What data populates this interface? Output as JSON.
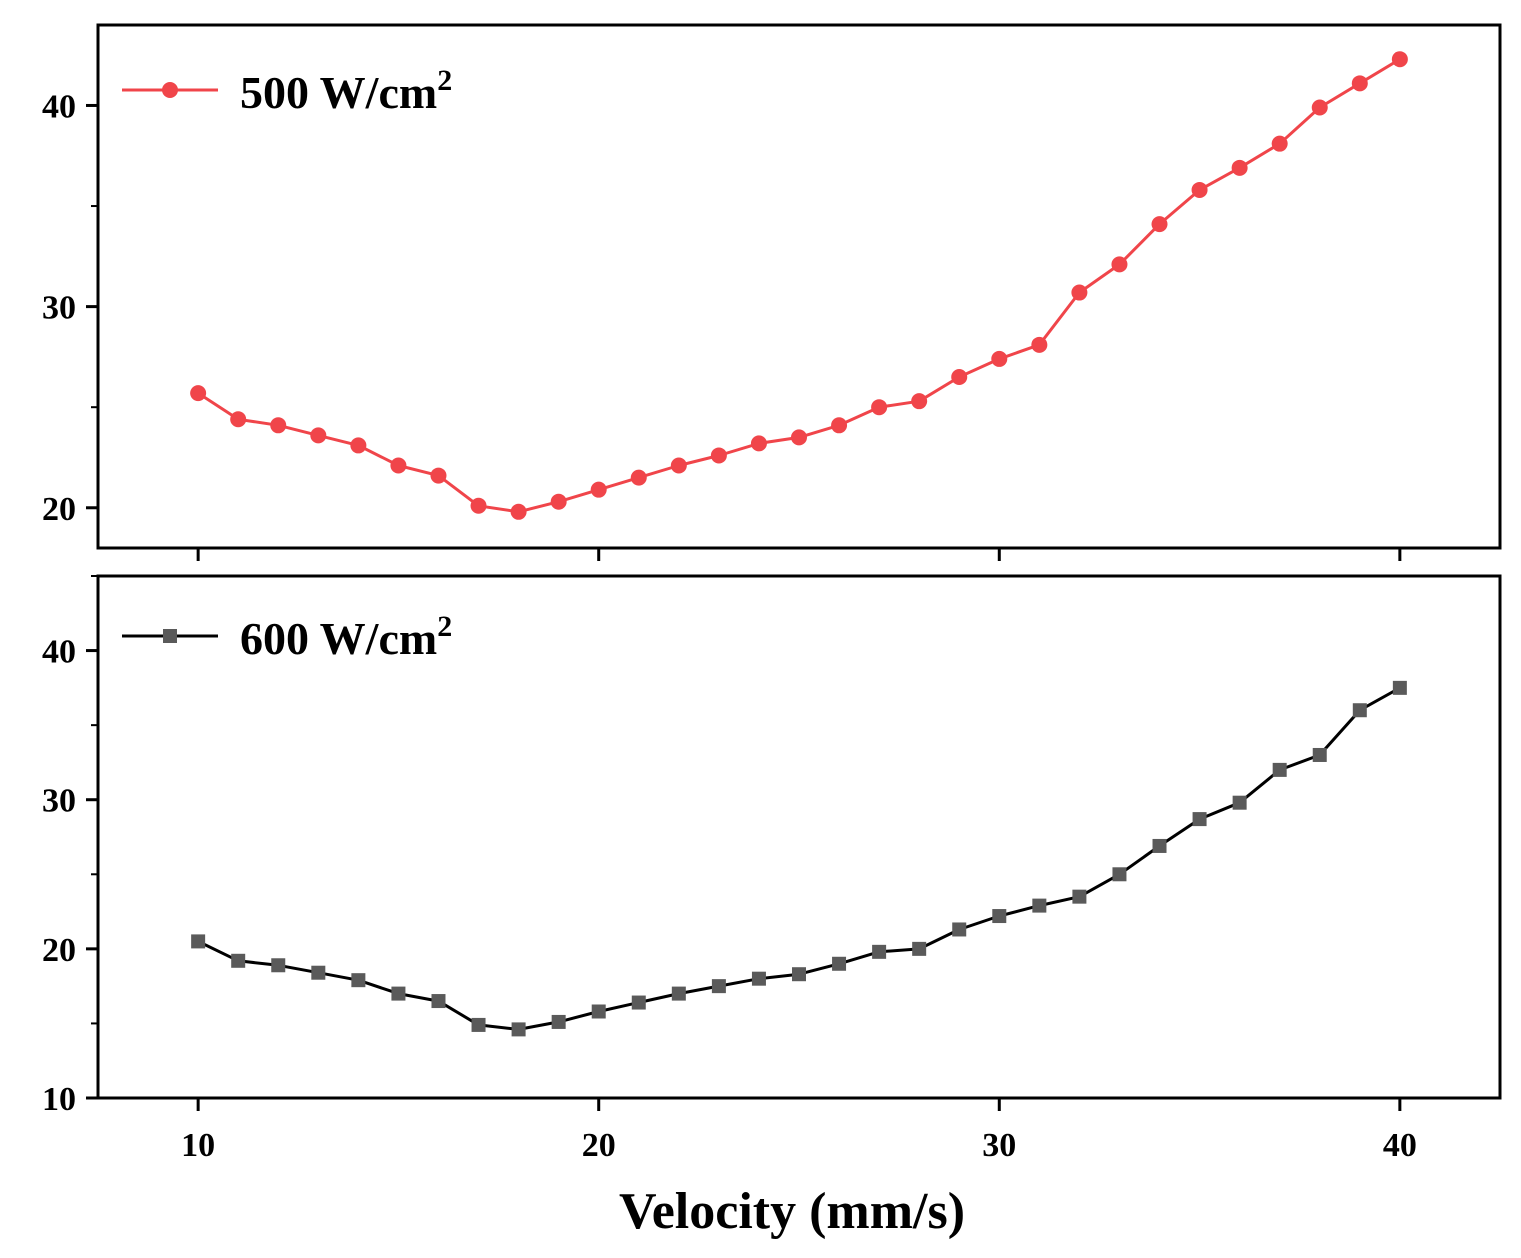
{
  "chart_data": [
    {
      "type": "line",
      "legend_label": "500 W/cm",
      "legend_superscript": "2",
      "legend_position": "top-left",
      "color": "#f0454a",
      "marker": "circle",
      "xlabel": "Velocity (mm/s)",
      "ylabel": "",
      "xlim": [
        7.5,
        42.5
      ],
      "ylim": [
        18,
        44
      ],
      "x_ticks": [
        10,
        20,
        30,
        40
      ],
      "y_ticks": [
        20,
        30,
        40
      ],
      "y_tick_labels": [
        "20",
        "30",
        "40"
      ],
      "x": [
        10,
        11,
        12,
        13,
        14,
        15,
        16,
        17,
        18,
        19,
        20,
        21,
        22,
        23,
        24,
        25,
        26,
        27,
        28,
        29,
        30,
        31,
        32,
        33,
        34,
        35,
        36,
        37,
        38,
        39,
        40
      ],
      "values": [
        25.7,
        24.4,
        24.1,
        23.6,
        23.1,
        22.1,
        21.6,
        20.1,
        19.8,
        20.3,
        20.9,
        21.5,
        22.1,
        22.6,
        23.2,
        23.5,
        24.1,
        25.0,
        25.3,
        26.5,
        27.4,
        28.1,
        30.7,
        32.1,
        34.1,
        35.8,
        36.9,
        38.1,
        39.9,
        41.1,
        42.3
      ]
    },
    {
      "type": "line",
      "legend_label": "600 W/cm",
      "legend_superscript": "2",
      "legend_position": "top-left",
      "color": "#5a5a5a",
      "line_color": "#000000",
      "marker": "square",
      "xlabel": "Velocity (mm/s)",
      "ylabel": "",
      "xlim": [
        7.5,
        42.5
      ],
      "ylim": [
        10,
        45
      ],
      "x_ticks": [
        10,
        20,
        30,
        40
      ],
      "x_tick_labels": [
        "10",
        "20",
        "30",
        "40"
      ],
      "y_ticks": [
        10,
        20,
        30,
        40
      ],
      "y_tick_labels": [
        "10",
        "20",
        "30",
        "40"
      ],
      "x": [
        10,
        11,
        12,
        13,
        14,
        15,
        16,
        17,
        18,
        19,
        20,
        21,
        22,
        23,
        24,
        25,
        26,
        27,
        28,
        29,
        30,
        31,
        32,
        33,
        34,
        35,
        36,
        37,
        38,
        39,
        40
      ],
      "values": [
        20.5,
        19.2,
        18.9,
        18.4,
        17.9,
        17.0,
        16.5,
        14.9,
        14.6,
        15.1,
        15.8,
        16.4,
        17.0,
        17.5,
        18.0,
        18.3,
        19.0,
        19.8,
        20.0,
        21.3,
        22.2,
        22.9,
        23.5,
        25.0,
        26.9,
        28.7,
        29.8,
        32.0,
        33.0,
        36.0,
        37.5
      ]
    }
  ]
}
